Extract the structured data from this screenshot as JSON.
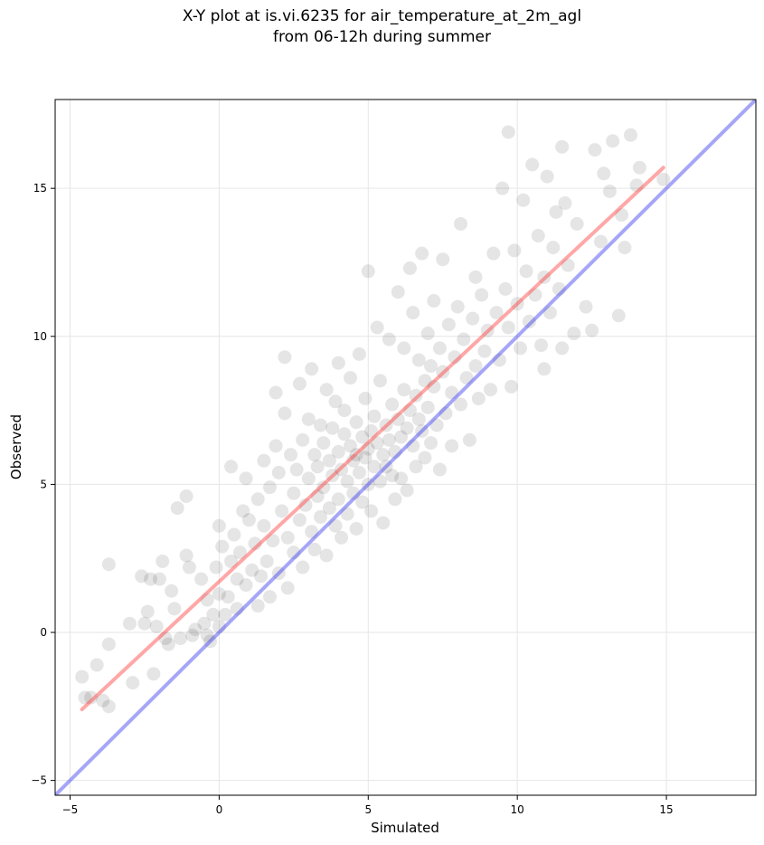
{
  "chart_data": {
    "type": "scatter",
    "title": "X-Y plot at is.vi.6235 for air_temperature_at_2m_agl",
    "subtitle": "from 06-12h during summer",
    "xlabel": "Simulated",
    "ylabel": "Observed",
    "xlim": [
      -5.5,
      18
    ],
    "ylim": [
      -5.5,
      18
    ],
    "xticks": [
      -5,
      0,
      5,
      10,
      15
    ],
    "yticks": [
      -5,
      0,
      5,
      10,
      15
    ],
    "xtick_labels": [
      "−5",
      "0",
      "5",
      "10",
      "15"
    ],
    "ytick_labels": [
      "−5",
      "0",
      "5",
      "10",
      "15"
    ],
    "grid": true,
    "legend": "none",
    "series": [
      {
        "kind": "scatter",
        "color": "#000000",
        "points": [
          [
            -4.6,
            -1.5
          ],
          [
            -4.5,
            -2.2
          ],
          [
            -4.3,
            -2.2
          ],
          [
            -4.1,
            -1.1
          ],
          [
            -3.9,
            -2.3
          ],
          [
            -3.7,
            -2.5
          ],
          [
            -3.7,
            -0.4
          ],
          [
            -3.7,
            2.3
          ],
          [
            -3.0,
            0.3
          ],
          [
            -2.9,
            -1.7
          ],
          [
            -2.6,
            1.9
          ],
          [
            -2.5,
            0.3
          ],
          [
            -2.4,
            0.7
          ],
          [
            -2.3,
            1.8
          ],
          [
            -2.2,
            -1.4
          ],
          [
            -2.1,
            0.2
          ],
          [
            -2.0,
            1.8
          ],
          [
            -1.9,
            2.4
          ],
          [
            -1.8,
            -0.2
          ],
          [
            -1.7,
            -0.4
          ],
          [
            -1.6,
            1.4
          ],
          [
            -1.5,
            0.8
          ],
          [
            -1.4,
            4.2
          ],
          [
            -1.3,
            -0.2
          ],
          [
            -1.1,
            2.6
          ],
          [
            -1.1,
            4.6
          ],
          [
            -1.0,
            2.2
          ],
          [
            -0.9,
            -0.1
          ],
          [
            -0.8,
            0.1
          ],
          [
            -0.6,
            1.8
          ],
          [
            -0.5,
            0.3
          ],
          [
            -0.4,
            -0.1
          ],
          [
            -0.4,
            1.1
          ],
          [
            -0.3,
            -0.3
          ],
          [
            -0.2,
            0.6
          ],
          [
            -0.1,
            2.2
          ],
          [
            0.0,
            3.6
          ],
          [
            0.0,
            1.3
          ],
          [
            0.0,
            0.2
          ],
          [
            0.1,
            2.9
          ],
          [
            0.2,
            0.6
          ],
          [
            0.3,
            1.2
          ],
          [
            0.4,
            2.4
          ],
          [
            0.4,
            5.6
          ],
          [
            0.5,
            3.3
          ],
          [
            0.6,
            1.8
          ],
          [
            0.6,
            0.8
          ],
          [
            0.7,
            2.7
          ],
          [
            0.8,
            4.1
          ],
          [
            0.9,
            1.6
          ],
          [
            0.9,
            5.2
          ],
          [
            1.0,
            3.8
          ],
          [
            1.1,
            2.1
          ],
          [
            1.2,
            3.0
          ],
          [
            1.3,
            0.9
          ],
          [
            1.3,
            4.5
          ],
          [
            1.4,
            1.9
          ],
          [
            1.5,
            3.6
          ],
          [
            1.5,
            5.8
          ],
          [
            1.6,
            2.4
          ],
          [
            1.7,
            1.2
          ],
          [
            1.7,
            4.9
          ],
          [
            1.8,
            3.1
          ],
          [
            1.9,
            6.3
          ],
          [
            1.9,
            8.1
          ],
          [
            2.0,
            2.0
          ],
          [
            2.0,
            5.4
          ],
          [
            2.1,
            4.1
          ],
          [
            2.2,
            7.4
          ],
          [
            2.2,
            9.3
          ],
          [
            2.3,
            3.2
          ],
          [
            2.3,
            1.5
          ],
          [
            2.4,
            6.0
          ],
          [
            2.5,
            4.7
          ],
          [
            2.5,
            2.7
          ],
          [
            2.6,
            5.5
          ],
          [
            2.7,
            3.8
          ],
          [
            2.7,
            8.4
          ],
          [
            2.8,
            6.5
          ],
          [
            2.8,
            2.2
          ],
          [
            2.9,
            4.3
          ],
          [
            3.0,
            5.2
          ],
          [
            3.0,
            7.2
          ],
          [
            3.1,
            3.4
          ],
          [
            3.1,
            8.9
          ],
          [
            3.2,
            6.0
          ],
          [
            3.2,
            2.8
          ],
          [
            3.3,
            4.6
          ],
          [
            3.3,
            5.6
          ],
          [
            3.4,
            7.0
          ],
          [
            3.4,
            3.9
          ],
          [
            3.5,
            6.4
          ],
          [
            3.5,
            4.9
          ],
          [
            3.6,
            8.2
          ],
          [
            3.6,
            2.6
          ],
          [
            3.7,
            5.8
          ],
          [
            3.7,
            4.2
          ],
          [
            3.8,
            6.9
          ],
          [
            3.8,
            5.3
          ],
          [
            3.9,
            3.6
          ],
          [
            3.9,
            7.8
          ],
          [
            4.0,
            6.1
          ],
          [
            4.0,
            4.5
          ],
          [
            4.0,
            9.1
          ],
          [
            4.1,
            5.5
          ],
          [
            4.1,
            3.2
          ],
          [
            4.2,
            6.7
          ],
          [
            4.2,
            7.5
          ],
          [
            4.3,
            5.1
          ],
          [
            4.3,
            4.0
          ],
          [
            4.4,
            6.3
          ],
          [
            4.4,
            8.6
          ],
          [
            4.5,
            5.8
          ],
          [
            4.5,
            4.7
          ],
          [
            4.6,
            7.1
          ],
          [
            4.6,
            6.0
          ],
          [
            4.6,
            3.5
          ],
          [
            4.7,
            5.4
          ],
          [
            4.7,
            9.4
          ],
          [
            4.8,
            6.6
          ],
          [
            4.8,
            4.4
          ],
          [
            4.9,
            5.9
          ],
          [
            4.9,
            7.9
          ],
          [
            5.0,
            6.2
          ],
          [
            5.0,
            5.0
          ],
          [
            5.0,
            12.2
          ],
          [
            5.1,
            6.8
          ],
          [
            5.1,
            4.1
          ],
          [
            5.2,
            5.6
          ],
          [
            5.2,
            7.3
          ],
          [
            5.3,
            6.4
          ],
          [
            5.3,
            10.3
          ],
          [
            5.4,
            5.1
          ],
          [
            5.4,
            8.5
          ],
          [
            5.5,
            6.0
          ],
          [
            5.5,
            3.7
          ],
          [
            5.6,
            7.0
          ],
          [
            5.6,
            5.6
          ],
          [
            5.7,
            6.5
          ],
          [
            5.7,
            9.9
          ],
          [
            5.8,
            5.3
          ],
          [
            5.8,
            7.7
          ],
          [
            5.9,
            6.1
          ],
          [
            5.9,
            4.5
          ],
          [
            6.0,
            7.2
          ],
          [
            6.0,
            11.5
          ],
          [
            6.1,
            6.6
          ],
          [
            6.1,
            5.2
          ],
          [
            6.2,
            8.2
          ],
          [
            6.2,
            9.6
          ],
          [
            6.3,
            6.9
          ],
          [
            6.3,
            4.8
          ],
          [
            6.4,
            7.5
          ],
          [
            6.4,
            12.3
          ],
          [
            6.5,
            6.3
          ],
          [
            6.5,
            10.8
          ],
          [
            6.6,
            8.0
          ],
          [
            6.6,
            5.6
          ],
          [
            6.7,
            7.2
          ],
          [
            6.7,
            9.2
          ],
          [
            6.8,
            6.8
          ],
          [
            6.8,
            12.8
          ],
          [
            6.9,
            8.5
          ],
          [
            6.9,
            5.9
          ],
          [
            7.0,
            7.6
          ],
          [
            7.0,
            10.1
          ],
          [
            7.1,
            6.4
          ],
          [
            7.1,
            9.0
          ],
          [
            7.2,
            8.3
          ],
          [
            7.2,
            11.2
          ],
          [
            7.3,
            7.0
          ],
          [
            7.4,
            9.6
          ],
          [
            7.4,
            5.5
          ],
          [
            7.5,
            8.8
          ],
          [
            7.5,
            12.6
          ],
          [
            7.6,
            7.4
          ],
          [
            7.7,
            10.4
          ],
          [
            7.8,
            8.1
          ],
          [
            7.8,
            6.3
          ],
          [
            7.9,
            9.3
          ],
          [
            8.0,
            11.0
          ],
          [
            8.1,
            7.7
          ],
          [
            8.1,
            13.8
          ],
          [
            8.2,
            9.9
          ],
          [
            8.3,
            8.6
          ],
          [
            8.4,
            6.5
          ],
          [
            8.5,
            10.6
          ],
          [
            8.6,
            9.0
          ],
          [
            8.6,
            12.0
          ],
          [
            8.7,
            7.9
          ],
          [
            8.8,
            11.4
          ],
          [
            8.9,
            9.5
          ],
          [
            9.0,
            10.2
          ],
          [
            9.1,
            8.2
          ],
          [
            9.2,
            12.8
          ],
          [
            9.3,
            10.8
          ],
          [
            9.4,
            9.2
          ],
          [
            9.5,
            15.0
          ],
          [
            9.6,
            11.6
          ],
          [
            9.7,
            10.3
          ],
          [
            9.7,
            16.9
          ],
          [
            9.8,
            8.3
          ],
          [
            9.9,
            12.9
          ],
          [
            10.0,
            11.1
          ],
          [
            10.1,
            9.6
          ],
          [
            10.2,
            14.6
          ],
          [
            10.3,
            12.2
          ],
          [
            10.4,
            10.5
          ],
          [
            10.5,
            15.8
          ],
          [
            10.6,
            11.4
          ],
          [
            10.7,
            13.4
          ],
          [
            10.8,
            9.7
          ],
          [
            10.9,
            12.0
          ],
          [
            10.9,
            8.9
          ],
          [
            11.0,
            15.4
          ],
          [
            11.1,
            10.8
          ],
          [
            11.2,
            13.0
          ],
          [
            11.3,
            14.2
          ],
          [
            11.4,
            11.6
          ],
          [
            11.5,
            16.4
          ],
          [
            11.5,
            9.6
          ],
          [
            11.6,
            14.5
          ],
          [
            11.7,
            12.4
          ],
          [
            11.9,
            10.1
          ],
          [
            12.0,
            13.8
          ],
          [
            12.3,
            11.0
          ],
          [
            12.5,
            10.2
          ],
          [
            12.6,
            16.3
          ],
          [
            12.8,
            13.2
          ],
          [
            12.9,
            15.5
          ],
          [
            13.1,
            14.9
          ],
          [
            13.2,
            16.6
          ],
          [
            13.4,
            10.7
          ],
          [
            13.5,
            14.1
          ],
          [
            13.6,
            13.0
          ],
          [
            13.8,
            16.8
          ],
          [
            14.0,
            15.1
          ],
          [
            14.1,
            15.7
          ],
          [
            14.9,
            15.3
          ]
        ]
      }
    ],
    "lines": [
      {
        "name": "",
        "color": "#ff3b3b",
        "x": [
          -4.6,
          14.9
        ],
        "y": [
          -2.6,
          15.7
        ]
      },
      {
        "name": "",
        "color": "#3a3af0",
        "x": [
          -5.5,
          18
        ],
        "y": [
          -5.5,
          18
        ]
      }
    ]
  }
}
